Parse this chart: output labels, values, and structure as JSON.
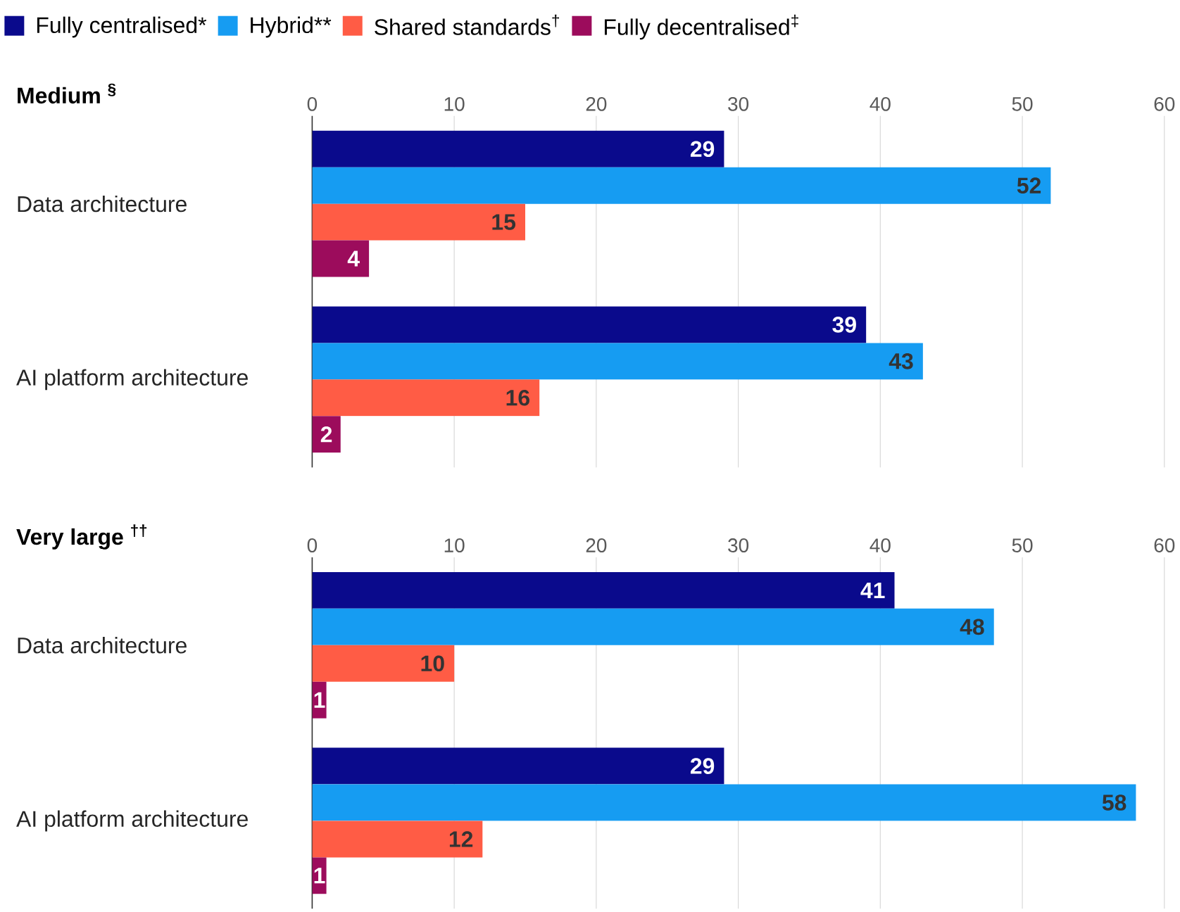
{
  "chart_data": [
    {
      "type": "bar",
      "orientation": "horizontal",
      "title": "Medium $^{§}$",
      "categories": [
        "Data architecture",
        "AI platform architecture"
      ],
      "series": [
        {
          "name": "Fully centralised*",
          "color": "#0a0a8c",
          "values": [
            29,
            39
          ]
        },
        {
          "name": "Hybrid**",
          "color": "#169cf2",
          "values": [
            52,
            43
          ]
        },
        {
          "name": "Shared standards$^{†}$",
          "color": "#ff5c45",
          "values": [
            15,
            16
          ]
        },
        {
          "name": "Fully decentralised$^{‡}$",
          "color": "#9c0c5c",
          "values": [
            4,
            2
          ]
        }
      ],
      "xlim": [
        0,
        60
      ],
      "xticks": [
        0,
        10,
        20,
        30,
        40,
        50,
        60
      ],
      "grid": "x",
      "legend": "top",
      "data_labels": true
    },
    {
      "type": "bar",
      "orientation": "horizontal",
      "title": "Very large $^{††}$",
      "categories": [
        "Data architecture",
        "AI platform architecture"
      ],
      "series": [
        {
          "color": "#0a0a8c",
          "values": [
            41,
            29
          ]
        },
        {
          "color": "#169cf2",
          "values": [
            48,
            58
          ]
        },
        {
          "color": "#ff5c45",
          "values": [
            10,
            12
          ]
        },
        {
          "color": "#9c0c5c",
          "values": [
            1,
            1
          ]
        }
      ],
      "xlim": [
        0,
        60
      ],
      "xticks": [
        0,
        10,
        20,
        30,
        40,
        50,
        60
      ],
      "grid": "x",
      "data_labels": true
    }
  ]
}
